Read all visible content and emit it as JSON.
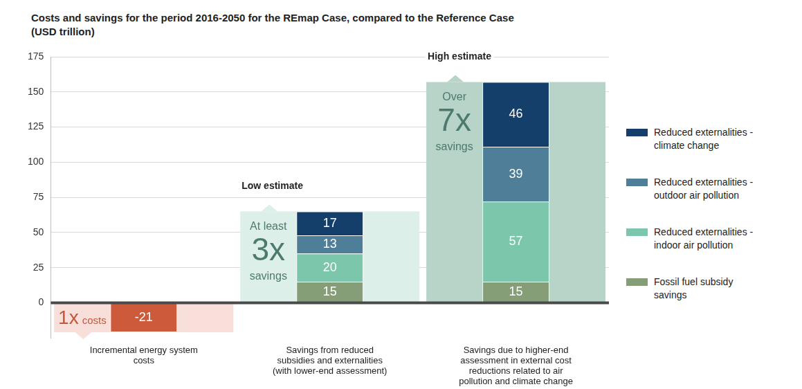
{
  "chart_data": {
    "type": "bar",
    "title": "Costs and savings for the period 2016-2050 for the REmap Case, compared to the Reference Case",
    "subtitle": "(USD trillion)",
    "categories": [
      "Incremental energy system costs",
      "Savings from reduced subsidies and externalities (with lower-end assessment)",
      "Savings due to higher-end assessment in external cost reductions related to air pollution and climate change"
    ],
    "series": [
      {
        "name": "Fossil fuel subsidy savings",
        "color": "#869e78",
        "values": [
          null,
          15,
          15
        ]
      },
      {
        "name": "Reduced externalities - indoor air pollution",
        "color": "#7cc7ab",
        "values": [
          null,
          20,
          57
        ]
      },
      {
        "name": "Reduced externalities - outdoor air pollution",
        "color": "#4f7f98",
        "values": [
          null,
          13,
          39
        ]
      },
      {
        "name": "Reduced externalities - climate change",
        "color": "#143f6b",
        "values": [
          null,
          17,
          46
        ]
      },
      {
        "color": "#cc5a3b",
        "values": [
          -21,
          null,
          null
        ]
      }
    ],
    "ylim": [
      -25,
      175
    ],
    "yticks": [
      0,
      25,
      50,
      75,
      100,
      125,
      150,
      175
    ],
    "grid": true,
    "stacked": true,
    "data_labels": true,
    "legend": "right",
    "annotations": [
      {
        "text": [
          "1x",
          "costs"
        ]
      },
      {
        "heading": "Low estimate",
        "text": [
          "At least",
          "3x",
          "savings"
        ]
      },
      {
        "heading": "High estimate",
        "text": [
          "Over",
          "7x",
          "savings"
        ]
      }
    ]
  }
}
